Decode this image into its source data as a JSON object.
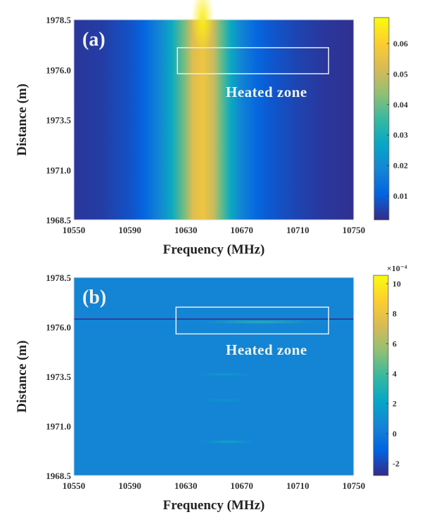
{
  "colors": {
    "parula": [
      "#352a87",
      "#0363e1",
      "#1485d4",
      "#06a7c6",
      "#38b99e",
      "#92bf73",
      "#d9ba56",
      "#fcce2e",
      "#f9fb0e"
    ],
    "annotation_box": "#e8eef0"
  },
  "chart_data": [
    {
      "type": "heatmap",
      "panel_label": "(a)",
      "xlabel": "Frequency (MHz)",
      "ylabel": "Distance (m)",
      "xlim": [
        10550,
        10750
      ],
      "ylim": [
        1968.5,
        1978.5
      ],
      "xticks": [
        "10550",
        "10590",
        "10630",
        "10670",
        "10710",
        "10750"
      ],
      "yticks": [
        "1978.5",
        "1976.0",
        "1973.5",
        "1971.0",
        "1968.5"
      ],
      "colorbar": {
        "range": [
          0.0022,
          0.0685
        ],
        "ticks": [
          "0.01",
          "0.02",
          "0.03",
          "0.04",
          "0.05",
          "0.06"
        ],
        "exponent_label": ""
      },
      "profile": {
        "frequency": [
          10550,
          10570,
          10590,
          10600,
          10610,
          10620,
          10628,
          10635,
          10642,
          10650,
          10655,
          10662,
          10670,
          10680,
          10690,
          10710,
          10730,
          10750
        ],
        "value": [
          0.004,
          0.005,
          0.008,
          0.011,
          0.018,
          0.028,
          0.04,
          0.053,
          0.057,
          0.05,
          0.04,
          0.028,
          0.018,
          0.012,
          0.009,
          0.006,
          0.004,
          0.003
        ]
      },
      "hotspot": {
        "frequency": 10642,
        "distance": 1978.5,
        "value": 0.066
      },
      "annotation": {
        "text": "Heated zone",
        "box_frequency": [
          10624,
          10732
        ],
        "box_distance": [
          1975.8,
          1977.1
        ]
      }
    },
    {
      "type": "heatmap",
      "panel_label": "(b)",
      "xlabel": "Frequency (MHz)",
      "ylabel": "Distance (m)",
      "xlim": [
        10550,
        10750
      ],
      "ylim": [
        1968.5,
        1978.5
      ],
      "xticks": [
        "10550",
        "10590",
        "10630",
        "10670",
        "10710",
        "10750"
      ],
      "yticks": [
        "1978.5",
        "1976.0",
        "1973.5",
        "1971.0",
        "1968.5"
      ],
      "colorbar": {
        "range": [
          -2.8,
          10.56
        ],
        "ticks": [
          "10",
          "8",
          "6",
          "4",
          "2",
          "0",
          "-2"
        ],
        "exponent_label": "×10⁻⁴"
      },
      "background_value": 0.5,
      "features": [
        {
          "kind": "line",
          "distance": 1976.4,
          "frequency": [
            10550,
            10750
          ],
          "value": -3
        },
        {
          "kind": "streak",
          "distance": 1976.25,
          "frequency": [
            10640,
            10725
          ],
          "value": 3.5
        },
        {
          "kind": "streak",
          "distance": 1973.6,
          "frequency": [
            10635,
            10680
          ],
          "value": 1.8
        },
        {
          "kind": "streak",
          "distance": 1972.3,
          "frequency": [
            10640,
            10675
          ],
          "value": 1.5
        },
        {
          "kind": "streak",
          "distance": 1970.2,
          "frequency": [
            10640,
            10680
          ],
          "value": 2.5
        }
      ],
      "annotation": {
        "text": "Heated zone",
        "box_frequency": [
          10623,
          10732
        ],
        "box_distance": [
          1975.65,
          1977.0
        ]
      }
    }
  ]
}
